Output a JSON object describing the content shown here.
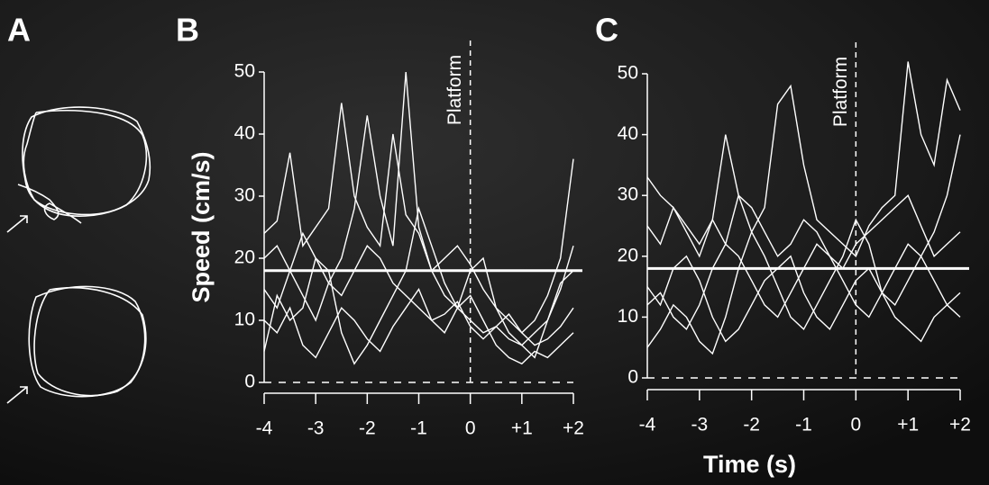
{
  "panel_a": {
    "label": "A"
  },
  "chart_data": [
    {
      "type": "line",
      "panel": "B",
      "ylabel": "Speed (cm/s)",
      "annotation": "Platform",
      "annotation_x": 0,
      "reference_line": 18,
      "x": [
        -4,
        -3.75,
        -3.5,
        -3.25,
        -3,
        -2.75,
        -2.5,
        -2.25,
        -2,
        -1.75,
        -1.5,
        -1.25,
        -1,
        -0.75,
        -0.5,
        -0.25,
        0,
        0.25,
        0.5,
        0.75,
        1,
        1.25,
        1.5,
        1.75,
        2
      ],
      "xlim": [
        -4,
        2
      ],
      "ylim": [
        0,
        50
      ],
      "yticks": [
        0,
        10,
        20,
        30,
        40,
        50
      ],
      "xticks": [
        -4,
        -3,
        -2,
        -1,
        0,
        {
          "value": 1,
          "label": "+1"
        },
        {
          "value": 2,
          "label": "+2"
        }
      ],
      "series": [
        {
          "color": "#ffffff",
          "values": [
            24,
            26,
            37,
            22,
            25,
            28,
            45,
            30,
            25,
            22,
            40,
            27,
            24,
            18,
            20,
            22,
            19,
            15,
            12,
            10,
            8,
            10,
            14,
            20,
            36
          ]
        },
        {
          "color": "#ffffff",
          "values": [
            15,
            12,
            18,
            14,
            10,
            16,
            20,
            28,
            43,
            30,
            22,
            50,
            25,
            18,
            14,
            12,
            10,
            8,
            9,
            7,
            6,
            8,
            10,
            15,
            22
          ]
        },
        {
          "color": "#ffffff",
          "values": [
            10,
            8,
            12,
            6,
            4,
            8,
            12,
            10,
            7,
            5,
            9,
            12,
            15,
            10,
            8,
            12,
            14,
            10,
            6,
            4,
            3,
            5,
            4,
            6,
            8
          ]
        },
        {
          "color": "#ffffff",
          "values": [
            20,
            22,
            18,
            24,
            20,
            16,
            14,
            18,
            22,
            20,
            16,
            14,
            12,
            10,
            11,
            13,
            9,
            7,
            9,
            11,
            8,
            6,
            7,
            9,
            12
          ]
        },
        {
          "color": "#ffffff",
          "values": [
            5,
            14,
            10,
            12,
            20,
            18,
            8,
            3,
            6,
            10,
            14,
            18,
            28,
            22,
            16,
            12,
            18,
            20,
            12,
            8,
            6,
            4,
            10,
            16,
            18
          ]
        }
      ]
    },
    {
      "type": "line",
      "panel": "C",
      "xlabel": "Time (s)",
      "annotation": "Platform",
      "annotation_x": 0,
      "reference_line": 18,
      "x": [
        -4,
        -3.75,
        -3.5,
        -3.25,
        -3,
        -2.75,
        -2.5,
        -2.25,
        -2,
        -1.75,
        -1.5,
        -1.25,
        -1,
        -0.75,
        -0.5,
        -0.25,
        0,
        0.25,
        0.5,
        0.75,
        1,
        1.25,
        1.5,
        1.75,
        2
      ],
      "xlim": [
        -4,
        2
      ],
      "ylim": [
        0,
        50
      ],
      "yticks": [
        0,
        10,
        20,
        30,
        40,
        50
      ],
      "xticks": [
        -4,
        -3,
        -2,
        -1,
        0,
        {
          "value": 1,
          "label": "+1"
        },
        {
          "value": 2,
          "label": "+2"
        }
      ],
      "series": [
        {
          "color": "#ffffff",
          "values": [
            33,
            30,
            28,
            25,
            22,
            26,
            40,
            30,
            24,
            28,
            45,
            48,
            35,
            26,
            24,
            22,
            20,
            25,
            28,
            30,
            52,
            40,
            35,
            49,
            44
          ]
        },
        {
          "color": "#ffffff",
          "values": [
            5,
            8,
            12,
            10,
            6,
            4,
            10,
            18,
            24,
            20,
            15,
            10,
            8,
            12,
            16,
            20,
            26,
            22,
            14,
            10,
            8,
            6,
            10,
            12,
            14
          ]
        },
        {
          "color": "#ffffff",
          "values": [
            25,
            22,
            28,
            24,
            20,
            26,
            22,
            30,
            28,
            24,
            20,
            22,
            26,
            24,
            20,
            18,
            22,
            24,
            26,
            28,
            30,
            25,
            20,
            22,
            24
          ]
        },
        {
          "color": "#ffffff",
          "values": [
            15,
            12,
            18,
            20,
            16,
            10,
            6,
            8,
            12,
            16,
            18,
            20,
            14,
            10,
            8,
            12,
            16,
            18,
            14,
            12,
            16,
            20,
            24,
            30,
            40
          ]
        },
        {
          "color": "#ffffff",
          "values": [
            12,
            14,
            10,
            8,
            12,
            18,
            22,
            20,
            16,
            12,
            10,
            14,
            18,
            22,
            20,
            16,
            12,
            10,
            14,
            18,
            22,
            20,
            16,
            12,
            10
          ]
        }
      ]
    }
  ]
}
